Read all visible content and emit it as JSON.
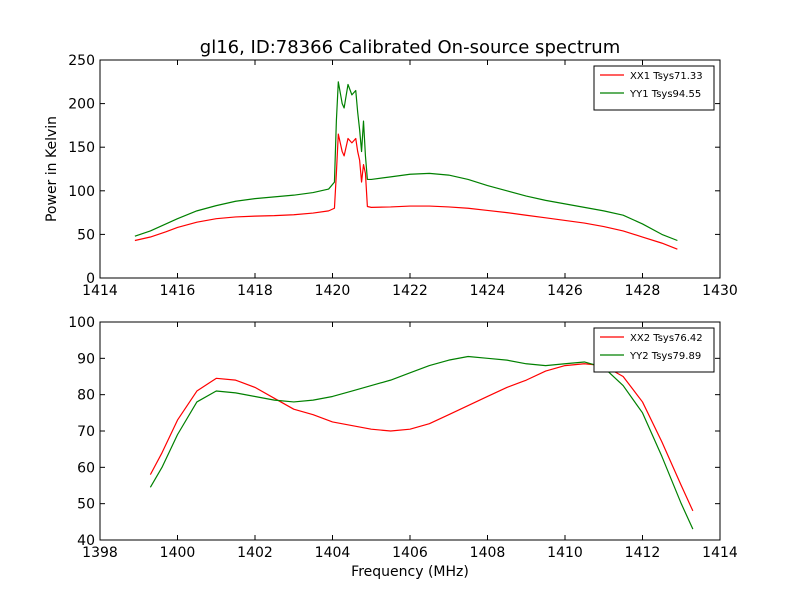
{
  "figure": {
    "title": "gl16, ID:78366 Calibrated On-source spectrum"
  },
  "chart_data": [
    {
      "type": "line",
      "title": "gl16, ID:78366 Calibrated On-source spectrum",
      "xlabel": "",
      "ylabel": "Power in Kelvin",
      "xlim": [
        1414,
        1430
      ],
      "ylim": [
        0,
        250
      ],
      "xticks": [
        1414,
        1416,
        1418,
        1420,
        1422,
        1424,
        1426,
        1428,
        1430
      ],
      "yticks": [
        0,
        50,
        100,
        150,
        200,
        250
      ],
      "grid": false,
      "legend_position": "top-right",
      "series": [
        {
          "name": "XX1 Tsys71.33",
          "color": "#ff0000",
          "points": [
            [
              1414.9,
              43
            ],
            [
              1415.3,
              47
            ],
            [
              1415.7,
              53
            ],
            [
              1416.0,
              58
            ],
            [
              1416.5,
              64
            ],
            [
              1417.0,
              68
            ],
            [
              1417.5,
              70
            ],
            [
              1418.0,
              71
            ],
            [
              1418.5,
              71.5
            ],
            [
              1419.0,
              72.5
            ],
            [
              1419.5,
              74.5
            ],
            [
              1419.9,
              77
            ],
            [
              1420.05,
              80
            ],
            [
              1420.1,
              120
            ],
            [
              1420.15,
              165
            ],
            [
              1420.25,
              145
            ],
            [
              1420.3,
              140
            ],
            [
              1420.4,
              160
            ],
            [
              1420.5,
              155
            ],
            [
              1420.6,
              160
            ],
            [
              1420.65,
              145
            ],
            [
              1420.7,
              135
            ],
            [
              1420.75,
              110
            ],
            [
              1420.8,
              130
            ],
            [
              1420.85,
              120
            ],
            [
              1420.9,
              82
            ],
            [
              1421.0,
              81
            ],
            [
              1421.5,
              81.5
            ],
            [
              1422.0,
              82.5
            ],
            [
              1422.5,
              82.5
            ],
            [
              1423.0,
              81.5
            ],
            [
              1423.5,
              80
            ],
            [
              1424.0,
              77.5
            ],
            [
              1424.5,
              75
            ],
            [
              1425.0,
              72
            ],
            [
              1425.5,
              69
            ],
            [
              1426.0,
              66
            ],
            [
              1426.5,
              63
            ],
            [
              1427.0,
              59
            ],
            [
              1427.5,
              54
            ],
            [
              1428.0,
              47
            ],
            [
              1428.5,
              40
            ],
            [
              1428.9,
              33
            ]
          ]
        },
        {
          "name": "YY1 Tsys94.55",
          "color": "#008000",
          "points": [
            [
              1414.9,
              48
            ],
            [
              1415.3,
              54
            ],
            [
              1415.7,
              62
            ],
            [
              1416.0,
              68
            ],
            [
              1416.5,
              77
            ],
            [
              1417.0,
              83
            ],
            [
              1417.5,
              88
            ],
            [
              1418.0,
              91
            ],
            [
              1418.5,
              93
            ],
            [
              1419.0,
              95
            ],
            [
              1419.5,
              98
            ],
            [
              1419.9,
              102
            ],
            [
              1420.05,
              110
            ],
            [
              1420.1,
              180
            ],
            [
              1420.15,
              225
            ],
            [
              1420.25,
              200
            ],
            [
              1420.3,
              195
            ],
            [
              1420.4,
              222
            ],
            [
              1420.5,
              210
            ],
            [
              1420.6,
              215
            ],
            [
              1420.65,
              190
            ],
            [
              1420.7,
              170
            ],
            [
              1420.75,
              145
            ],
            [
              1420.8,
              180
            ],
            [
              1420.85,
              140
            ],
            [
              1420.9,
              113
            ],
            [
              1421.0,
              113
            ],
            [
              1421.5,
              116
            ],
            [
              1422.0,
              119
            ],
            [
              1422.5,
              120
            ],
            [
              1423.0,
              118
            ],
            [
              1423.5,
              113
            ],
            [
              1424.0,
              106
            ],
            [
              1424.5,
              100
            ],
            [
              1425.0,
              94
            ],
            [
              1425.5,
              89
            ],
            [
              1426.0,
              85
            ],
            [
              1426.5,
              81
            ],
            [
              1427.0,
              77
            ],
            [
              1427.5,
              72
            ],
            [
              1428.0,
              62
            ],
            [
              1428.5,
              50
            ],
            [
              1428.9,
              43
            ]
          ]
        }
      ]
    },
    {
      "type": "line",
      "title": "",
      "xlabel": "Frequency (MHz)",
      "ylabel": "",
      "xlim": [
        1398,
        1414
      ],
      "ylim": [
        40,
        100
      ],
      "xticks": [
        1398,
        1400,
        1402,
        1404,
        1406,
        1408,
        1410,
        1412,
        1414
      ],
      "yticks": [
        40,
        50,
        60,
        70,
        80,
        90,
        100
      ],
      "grid": false,
      "legend_position": "top-right",
      "series": [
        {
          "name": "XX2 Tsys76.42",
          "color": "#ff0000",
          "points": [
            [
              1399.3,
              58
            ],
            [
              1399.6,
              64
            ],
            [
              1400.0,
              73
            ],
            [
              1400.5,
              81
            ],
            [
              1401.0,
              84.5
            ],
            [
              1401.5,
              84
            ],
            [
              1402.0,
              82
            ],
            [
              1402.5,
              79
            ],
            [
              1403.0,
              76
            ],
            [
              1403.5,
              74.5
            ],
            [
              1404.0,
              72.5
            ],
            [
              1404.5,
              71.5
            ],
            [
              1405.0,
              70.5
            ],
            [
              1405.5,
              70
            ],
            [
              1406.0,
              70.5
            ],
            [
              1406.5,
              72
            ],
            [
              1407.0,
              74.5
            ],
            [
              1407.5,
              77
            ],
            [
              1408.0,
              79.5
            ],
            [
              1408.5,
              82
            ],
            [
              1409.0,
              84
            ],
            [
              1409.5,
              86.5
            ],
            [
              1410.0,
              88
            ],
            [
              1410.5,
              88.5
            ],
            [
              1411.0,
              88
            ],
            [
              1411.5,
              85
            ],
            [
              1412.0,
              78
            ],
            [
              1412.5,
              67
            ],
            [
              1413.0,
              55
            ],
            [
              1413.3,
              48
            ]
          ]
        },
        {
          "name": "YY2 Tsys79.89",
          "color": "#008000",
          "points": [
            [
              1399.3,
              54.5
            ],
            [
              1399.6,
              60
            ],
            [
              1400.0,
              69
            ],
            [
              1400.5,
              78
            ],
            [
              1401.0,
              81
            ],
            [
              1401.5,
              80.5
            ],
            [
              1402.0,
              79.5
            ],
            [
              1402.5,
              78.5
            ],
            [
              1403.0,
              78
            ],
            [
              1403.5,
              78.5
            ],
            [
              1404.0,
              79.5
            ],
            [
              1404.5,
              81
            ],
            [
              1405.0,
              82.5
            ],
            [
              1405.5,
              84
            ],
            [
              1406.0,
              86
            ],
            [
              1406.5,
              88
            ],
            [
              1407.0,
              89.5
            ],
            [
              1407.5,
              90.5
            ],
            [
              1408.0,
              90
            ],
            [
              1408.5,
              89.5
            ],
            [
              1409.0,
              88.5
            ],
            [
              1409.5,
              88
            ],
            [
              1410.0,
              88.5
            ],
            [
              1410.5,
              89
            ],
            [
              1411.0,
              87.5
            ],
            [
              1411.5,
              82.5
            ],
            [
              1412.0,
              75
            ],
            [
              1412.5,
              63
            ],
            [
              1413.0,
              50
            ],
            [
              1413.3,
              43
            ]
          ]
        }
      ]
    }
  ]
}
